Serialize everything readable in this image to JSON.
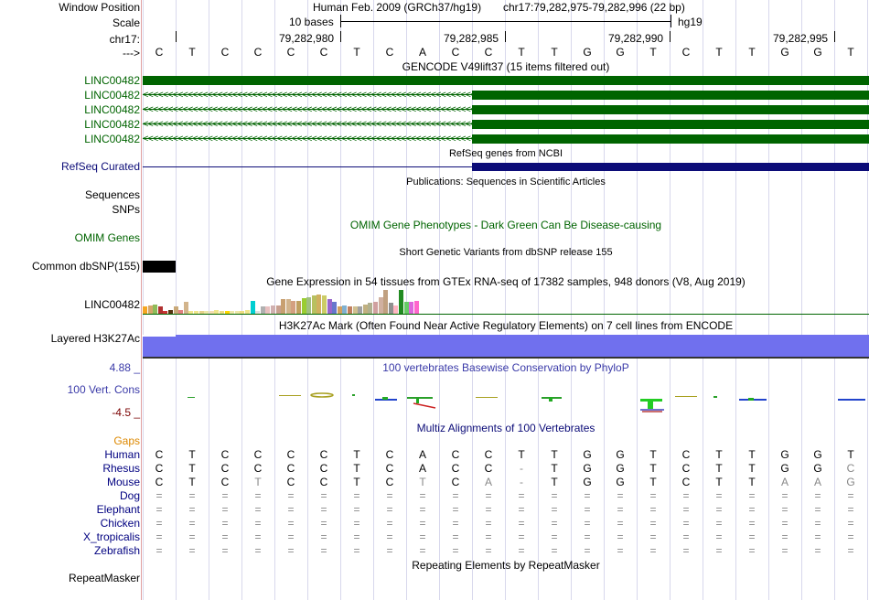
{
  "header": {
    "window_position_label": "Window Position",
    "scale_label": "Scale",
    "chrom_label": "chr17:",
    "strand_label": "--->",
    "assembly": "Human Feb. 2009 (GRCh37/hg19)",
    "position": "chr17:79,282,975-79,282,996 (22 bp)",
    "scale_bar_text": "10 bases",
    "db": "hg19",
    "coords": [
      "79,282,980",
      "79,282,985",
      "79,282,990",
      "79,282,995"
    ]
  },
  "bases": [
    "C",
    "T",
    "C",
    "C",
    "C",
    "C",
    "T",
    "C",
    "A",
    "C",
    "C",
    "T",
    "T",
    "G",
    "G",
    "T",
    "C",
    "T",
    "T",
    "G",
    "G",
    "T"
  ],
  "gencode": {
    "title": "GENCODE V49lift37 (15 items filtered out)",
    "items": [
      "LINC00482",
      "LINC00482",
      "LINC00482",
      "LINC00482",
      "LINC00482"
    ]
  },
  "refseq": {
    "title": "RefSeq genes from NCBI",
    "label": "RefSeq Curated"
  },
  "publications": {
    "title": "Publications: Sequences in Scientific Articles",
    "label": "Sequences",
    "snps_label": "SNPs"
  },
  "omim": {
    "title": "OMIM Gene Phenotypes - Dark Green Can Be Disease-causing",
    "label": "OMIM Genes"
  },
  "dbsnp": {
    "title": "Short Genetic Variants from dbSNP release 155",
    "label": "Common dbSNP(155)"
  },
  "gtex": {
    "title": "Gene Expression in 54 tissues from GTEx RNA-seq of 17382 samples, 948 donors (V8, Aug 2019)",
    "label": "LINC00482",
    "tissue_levels": [
      0.3,
      0.35,
      0.4,
      0.3,
      0.1,
      0.15,
      0.3,
      0.15,
      0.5,
      0.1,
      0.12,
      0.12,
      0.1,
      0.12,
      0.15,
      0.12,
      0.12,
      0.12,
      0.12,
      0.12,
      0.15,
      0.55,
      0.1,
      0.3,
      0.3,
      0.35,
      0.35,
      0.6,
      0.6,
      0.55,
      0.55,
      0.65,
      0.7,
      0.75,
      0.8,
      0.75,
      0.6,
      0.5,
      0.3,
      0.35,
      0.3,
      0.3,
      0.3,
      0.4,
      0.45,
      0.5,
      0.7,
      1.0,
      0.45,
      0.35,
      1.0,
      0.5,
      0.5,
      0.55
    ],
    "tissue_colors": [
      "#f5a623",
      "#d4a76a",
      "#8fbc5a",
      "#b03030",
      "#cc3333",
      "#553311",
      "#c8a878",
      "#e08080",
      "#d2b48c",
      "#f0e68c",
      "#f0e68c",
      "#e6d28c",
      "#eee8aa",
      "#f5deb3",
      "#f0e68c",
      "#eedd82",
      "#ffd700",
      "#eee8aa",
      "#eee8aa",
      "#eedd82",
      "#f0e68c",
      "#00ced1",
      "#e0e0e0",
      "#b0b0b0",
      "#e8c0c0",
      "#d0b0b0",
      "#c8a090",
      "#c8a070",
      "#d2b48c",
      "#d4a080",
      "#c0a060",
      "#9acd32",
      "#a0c080",
      "#b8c060",
      "#d0b060",
      "#cccc66",
      "#9966cc",
      "#6677cc",
      "#d0a060",
      "#80b0d0",
      "#c08060",
      "#d0c090",
      "#a0a0a0",
      "#c0b080",
      "#b0b090",
      "#d0a0a0",
      "#d0b0a0",
      "#c0a080",
      "#909090",
      "#ffb6c1",
      "#228b22",
      "#66cc66",
      "#dd66dd",
      "#ff66cc"
    ]
  },
  "h3k27ac": {
    "title": "H3K27Ac Mark (Often Found Near Active Regulatory Elements) on 7 cell lines from ENCODE",
    "label": "Layered H3K27Ac"
  },
  "conservation": {
    "title": "100 vertebrates Basewise Conservation by PhyloP",
    "label": "100 Vert. Cons",
    "ymax": "4.88 _",
    "ymin": "-4.5 _"
  },
  "multiz": {
    "title": "Multiz Alignments of 100 Vertebrates",
    "gaps_label": "Gaps",
    "species": [
      {
        "name": "Human",
        "seq": [
          "C",
          "T",
          "C",
          "C",
          "C",
          "C",
          "T",
          "C",
          "A",
          "C",
          "C",
          "T",
          "T",
          "G",
          "G",
          "T",
          "C",
          "T",
          "T",
          "G",
          "G",
          "T"
        ]
      },
      {
        "name": "Rhesus",
        "seq": [
          "C",
          "T",
          "C",
          "C",
          "C",
          "C",
          "T",
          "C",
          "A",
          "C",
          "C",
          "-",
          "T",
          "G",
          "G",
          "T",
          "C",
          "T",
          "T",
          "G",
          "G",
          "C"
        ]
      },
      {
        "name": "Mouse",
        "seq": [
          "C",
          "T",
          "C",
          "T",
          "C",
          "C",
          "T",
          "C",
          "T",
          "C",
          "A",
          "-",
          "T",
          "G",
          "G",
          "T",
          "C",
          "T",
          "T",
          "A",
          "A",
          "G"
        ]
      },
      {
        "name": "Dog",
        "seq": [
          "=",
          "=",
          "=",
          "=",
          "=",
          "=",
          "=",
          "=",
          "=",
          "=",
          "=",
          "=",
          "=",
          "=",
          "=",
          "=",
          "=",
          "=",
          "=",
          "=",
          "=",
          "="
        ]
      },
      {
        "name": "Elephant",
        "seq": [
          "=",
          "=",
          "=",
          "=",
          "=",
          "=",
          "=",
          "=",
          "=",
          "=",
          "=",
          "=",
          "=",
          "=",
          "=",
          "=",
          "=",
          "=",
          "=",
          "=",
          "=",
          "="
        ]
      },
      {
        "name": "Chicken",
        "seq": [
          "=",
          "=",
          "=",
          "=",
          "=",
          "=",
          "=",
          "=",
          "=",
          "=",
          "=",
          "=",
          "=",
          "=",
          "=",
          "=",
          "=",
          "=",
          "=",
          "=",
          "=",
          "="
        ]
      },
      {
        "name": "X_tropicalis",
        "seq": [
          "=",
          "=",
          "=",
          "=",
          "=",
          "=",
          "=",
          "=",
          "=",
          "=",
          "=",
          "=",
          "=",
          "=",
          "=",
          "=",
          "=",
          "=",
          "=",
          "=",
          "=",
          "="
        ]
      },
      {
        "name": "Zebrafish",
        "seq": [
          "=",
          "=",
          "=",
          "=",
          "=",
          "=",
          "=",
          "=",
          "=",
          "=",
          "=",
          "=",
          "=",
          "=",
          "=",
          "=",
          "=",
          "=",
          "=",
          "=",
          "=",
          "="
        ]
      }
    ]
  },
  "repeatmasker": {
    "title": "Repeating Elements by RepeatMasker",
    "label": "RepeatMasker"
  },
  "colors": {
    "gencode": "#006400",
    "refseq": "#0c0c78",
    "h3k27ac": "#7070ee",
    "divider": "#e0a0a0"
  }
}
